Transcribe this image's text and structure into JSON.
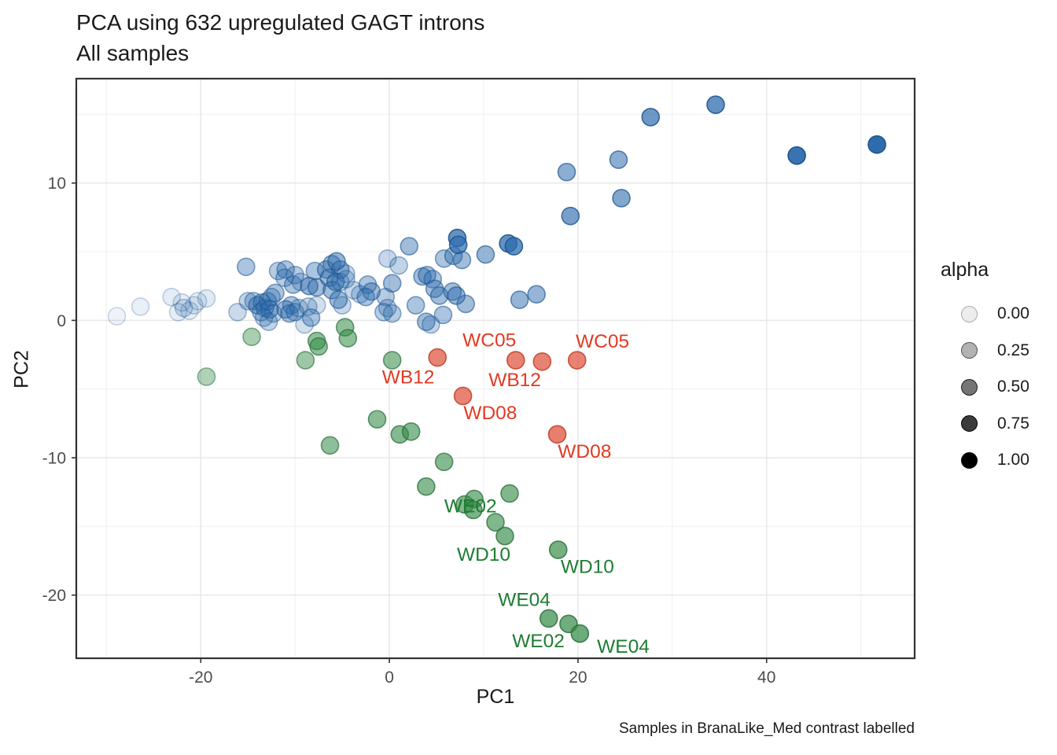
{
  "chart": {
    "title": "PCA using 632 upregulated GAGT introns",
    "subtitle": "All samples",
    "xlabel": "PC1",
    "ylabel": "PC2",
    "caption": "Samples in BranaLike_Med contrast labelled",
    "legend": {
      "title": "alpha",
      "values": [
        "0.00",
        "0.25",
        "0.50",
        "0.75",
        "1.00"
      ]
    }
  },
  "chart_data": {
    "type": "scatter",
    "title": "PCA using 632 upregulated GAGT introns",
    "subtitle": "All samples",
    "xlabel": "PC1",
    "ylabel": "PC2",
    "xlim": [
      -33.2,
      55.7
    ],
    "ylim": [
      -24.6,
      17.6
    ],
    "x_major_ticks": [
      -20,
      0,
      20,
      40
    ],
    "x_minor_ticks": [
      -30,
      -10,
      10,
      30,
      50
    ],
    "y_major_ticks": [
      -20,
      -10,
      0,
      10
    ],
    "y_minor_ticks": [
      -15,
      -5,
      5,
      15
    ],
    "grid": true,
    "legend_position": "right",
    "legend_alphas": [
      0,
      0.25,
      0.5,
      0.75,
      1
    ],
    "series": [
      {
        "name": "blue-cluster",
        "fill": "#2e6cae",
        "stroke": "#1f558e",
        "points": [
          [
            -28.9,
            0.3,
            0.08
          ],
          [
            -26.4,
            1.0,
            0.1
          ],
          [
            -23.1,
            1.7,
            0.13
          ],
          [
            -22.0,
            1.3,
            0.13
          ],
          [
            -21.8,
            0.9,
            0.18
          ],
          [
            -22.4,
            0.6,
            0.12
          ],
          [
            -21.2,
            0.7,
            0.12
          ],
          [
            -20.7,
            1.1,
            0.13
          ],
          [
            -19.4,
            1.6,
            0.14
          ],
          [
            -20.3,
            1.4,
            0.12
          ],
          [
            -16.1,
            0.6,
            0.25
          ],
          [
            -15.2,
            3.9,
            0.4
          ],
          [
            -15.0,
            1.4,
            0.3
          ],
          [
            -14.4,
            1.4,
            0.35
          ],
          [
            -14.0,
            1.1,
            0.45
          ],
          [
            -13.5,
            1.3,
            0.4
          ],
          [
            -13.2,
            0.9,
            0.45
          ],
          [
            -13.6,
            0.6,
            0.35
          ],
          [
            -12.9,
            1.4,
            0.4
          ],
          [
            -12.5,
            1.7,
            0.35
          ],
          [
            -12.1,
            2.0,
            0.4
          ],
          [
            -12.7,
            0.8,
            0.45
          ],
          [
            -12.3,
            0.5,
            0.3
          ],
          [
            -13.3,
            0.2,
            0.3
          ],
          [
            -12.8,
            -0.1,
            0.3
          ],
          [
            -11.8,
            3.6,
            0.35
          ],
          [
            -11.0,
            3.7,
            0.4
          ],
          [
            -11.1,
            3.1,
            0.35
          ],
          [
            -10.2,
            2.6,
            0.4
          ],
          [
            -10.0,
            3.3,
            0.35
          ],
          [
            -10.4,
            1.1,
            0.4
          ],
          [
            -11.0,
            0.8,
            0.45
          ],
          [
            -10.6,
            0.5,
            0.4
          ],
          [
            -10.0,
            0.6,
            0.35
          ],
          [
            -9.6,
            0.9,
            0.28
          ],
          [
            -8.6,
            1.0,
            0.28
          ],
          [
            -7.7,
            1.1,
            0.22
          ],
          [
            -8.3,
            0.2,
            0.4
          ],
          [
            -9.0,
            -0.3,
            0.22
          ],
          [
            -9.4,
            2.8,
            0.28
          ],
          [
            -8.5,
            2.5,
            0.5
          ],
          [
            -7.9,
            3.6,
            0.4
          ],
          [
            -7.7,
            2.4,
            0.45
          ],
          [
            -6.7,
            3.7,
            0.45
          ],
          [
            -6.1,
            4.1,
            0.45
          ],
          [
            -5.6,
            4.3,
            0.5
          ],
          [
            -5.2,
            3.7,
            0.45
          ],
          [
            -6.4,
            3.1,
            0.45
          ],
          [
            -5.7,
            2.8,
            0.5
          ],
          [
            -6.1,
            2.2,
            0.45
          ],
          [
            -5.2,
            2.8,
            0.3
          ],
          [
            -5.4,
            1.5,
            0.45
          ],
          [
            -5.0,
            1.1,
            0.27
          ],
          [
            -4.6,
            3.4,
            0.27
          ],
          [
            -4.6,
            3.0,
            0.27
          ],
          [
            -3.8,
            2.2,
            0.27
          ],
          [
            -3.1,
            1.9,
            0.27
          ],
          [
            -2.3,
            2.6,
            0.4
          ],
          [
            -1.9,
            2.1,
            0.45
          ],
          [
            -2.5,
            1.7,
            0.4
          ],
          [
            -0.2,
            4.5,
            0.27
          ],
          [
            1.0,
            4.0,
            0.3
          ],
          [
            -0.4,
            1.7,
            0.35
          ],
          [
            -0.2,
            0.9,
            0.3
          ],
          [
            0.3,
            2.7,
            0.45
          ],
          [
            -0.6,
            0.6,
            0.35
          ],
          [
            0.3,
            0.5,
            0.35
          ],
          [
            2.8,
            1.1,
            0.4
          ],
          [
            3.9,
            -0.1,
            0.45
          ],
          [
            4.4,
            -0.3,
            0.3
          ],
          [
            2.1,
            5.4,
            0.45
          ],
          [
            3.5,
            3.2,
            0.45
          ],
          [
            4.0,
            3.3,
            0.45
          ],
          [
            4.6,
            3.0,
            0.4
          ],
          [
            4.8,
            2.3,
            0.45
          ],
          [
            5.3,
            1.8,
            0.45
          ],
          [
            5.7,
            0.4,
            0.4
          ],
          [
            6.7,
            2.1,
            0.45
          ],
          [
            7.1,
            1.8,
            0.5
          ],
          [
            8.1,
            1.2,
            0.45
          ],
          [
            5.8,
            4.5,
            0.4
          ],
          [
            6.8,
            4.7,
            0.45
          ],
          [
            7.7,
            4.4,
            0.45
          ],
          [
            7.2,
            6.0,
            0.75
          ],
          [
            7.3,
            5.5,
            0.7
          ],
          [
            10.2,
            4.8,
            0.5
          ],
          [
            12.6,
            5.6,
            0.75
          ],
          [
            13.2,
            5.4,
            0.75
          ],
          [
            13.8,
            1.5,
            0.5
          ],
          [
            15.6,
            1.9,
            0.5
          ],
          [
            18.8,
            10.8,
            0.55
          ],
          [
            19.2,
            7.6,
            0.65
          ],
          [
            24.3,
            11.7,
            0.55
          ],
          [
            24.6,
            8.9,
            0.6
          ],
          [
            27.7,
            14.8,
            0.7
          ],
          [
            34.6,
            15.7,
            0.75
          ],
          [
            43.2,
            12.0,
            0.95
          ],
          [
            51.7,
            12.8,
            1.0
          ]
        ]
      },
      {
        "name": "green-cluster",
        "fill": "#338a46",
        "stroke": "#2a6f3a",
        "points": [
          [
            -19.4,
            -4.1,
            0.38
          ],
          [
            -14.6,
            -1.2,
            0.42
          ],
          [
            -8.9,
            -2.9,
            0.48
          ],
          [
            -7.7,
            -1.5,
            0.55
          ],
          [
            -7.5,
            -1.9,
            0.55
          ],
          [
            -4.7,
            -0.5,
            0.55
          ],
          [
            -4.4,
            -1.3,
            0.55
          ],
          [
            0.3,
            -2.9,
            0.55
          ],
          [
            -1.3,
            -7.2,
            0.58
          ],
          [
            1.1,
            -8.3,
            0.6
          ],
          [
            2.3,
            -8.1,
            0.6
          ],
          [
            -6.3,
            -9.1,
            0.55
          ],
          [
            5.8,
            -10.3,
            0.6
          ],
          [
            3.9,
            -12.1,
            0.6
          ],
          [
            8.0,
            -13.4,
            0.62
          ],
          [
            9.0,
            -13.0,
            0.62
          ],
          [
            8.9,
            -13.8,
            0.65
          ],
          [
            12.75,
            -12.6,
            0.62
          ],
          [
            11.25,
            -14.7,
            0.62
          ],
          [
            12.25,
            -15.7,
            0.65
          ],
          [
            17.9,
            -16.7,
            0.68
          ],
          [
            16.9,
            -21.7,
            0.7
          ],
          [
            19.0,
            -22.1,
            0.7
          ],
          [
            20.2,
            -22.8,
            0.72
          ]
        ]
      },
      {
        "name": "red-cluster",
        "fill": "#dd4831",
        "stroke": "#c03a24",
        "points": [
          [
            5.1,
            -2.7,
            0.68
          ],
          [
            13.4,
            -2.9,
            0.68
          ],
          [
            16.2,
            -3.0,
            0.68
          ],
          [
            19.9,
            -2.9,
            0.68
          ],
          [
            7.8,
            -5.5,
            0.68
          ],
          [
            17.8,
            -8.3,
            0.7
          ]
        ]
      }
    ],
    "point_labels": [
      {
        "text": "WC05",
        "x": 10.6,
        "y": -1.4,
        "group": "red"
      },
      {
        "text": "WC05",
        "x": 22.6,
        "y": -1.5,
        "group": "red"
      },
      {
        "text": "WB12",
        "x": 2.0,
        "y": -4.1,
        "group": "red"
      },
      {
        "text": "WB12",
        "x": 13.3,
        "y": -4.3,
        "group": "red"
      },
      {
        "text": "WD08",
        "x": 10.7,
        "y": -6.7,
        "group": "red"
      },
      {
        "text": "WD08",
        "x": 20.7,
        "y": -9.5,
        "group": "red"
      },
      {
        "text": "WE02",
        "x": 8.6,
        "y": -13.5,
        "group": "green"
      },
      {
        "text": "WD10",
        "x": 10.0,
        "y": -17.0,
        "group": "green"
      },
      {
        "text": "WD10",
        "x": 21.0,
        "y": -17.9,
        "group": "green"
      },
      {
        "text": "WE04",
        "x": 14.3,
        "y": -20.3,
        "group": "green"
      },
      {
        "text": "WE02",
        "x": 15.8,
        "y": -23.3,
        "group": "green"
      },
      {
        "text": "WE04",
        "x": 24.8,
        "y": -23.7,
        "group": "green"
      }
    ],
    "label_colors": {
      "red": "#e23a24",
      "green": "#1e7d32"
    },
    "panel_border_color": "#333333",
    "major_grid_color": "#e6e6e6",
    "minor_grid_color": "#f2f2f2"
  }
}
